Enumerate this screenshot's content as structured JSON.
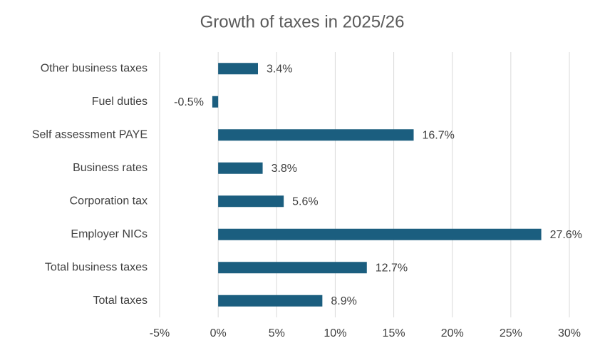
{
  "chart_data": {
    "type": "bar",
    "orientation": "horizontal",
    "title": "Growth of taxes in 2025/26",
    "categories": [
      "Other business taxes",
      "Fuel duties",
      "Self assessment PAYE",
      "Business rates",
      "Corporation tax",
      "Employer NICs",
      "Total business taxes",
      "Total taxes"
    ],
    "values": [
      3.4,
      -0.5,
      16.7,
      3.8,
      5.6,
      27.6,
      12.7,
      8.9
    ],
    "value_labels": [
      "3.4%",
      "-0.5%",
      "16.7%",
      "3.8%",
      "5.6%",
      "27.6%",
      "12.7%",
      "8.9%"
    ],
    "color": "#1b5e7f",
    "xlim": [
      -5,
      30
    ],
    "xticks": [
      {
        "value": -5,
        "label": "-5%"
      },
      {
        "value": 0,
        "label": "0%"
      },
      {
        "value": 5,
        "label": "5%"
      },
      {
        "value": 10,
        "label": "10%"
      },
      {
        "value": 15,
        "label": "15%"
      },
      {
        "value": 20,
        "label": "20%"
      },
      {
        "value": 25,
        "label": "25%"
      },
      {
        "value": 30,
        "label": "30%"
      }
    ],
    "grid": true
  }
}
